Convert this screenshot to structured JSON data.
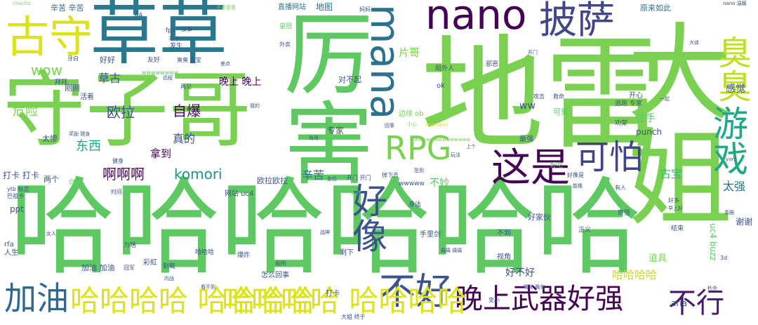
{
  "palette": {
    "dark_purple": "#440154",
    "blue": "#3b528b",
    "teal": "#21918c",
    "green": "#5ec962",
    "light_green": "#7ad151",
    "yellow_green": "#bddf26",
    "yellow": "#dce319"
  },
  "words": [
    {
      "text": "哈哈哈哈哈哈"
    },
    {
      "text": "地雷"
    },
    {
      "text": "大姐"
    },
    {
      "text": "守子哥"
    },
    {
      "text": "草草"
    },
    {
      "text": "厉害"
    },
    {
      "text": "古守"
    },
    {
      "text": "游戏"
    },
    {
      "text": "臭臭"
    },
    {
      "text": "nano"
    },
    {
      "text": "mana"
    },
    {
      "text": "披萨"
    },
    {
      "text": "RPG"
    },
    {
      "text": "好像"
    },
    {
      "text": "这是"
    },
    {
      "text": "可怕"
    },
    {
      "text": "不好"
    },
    {
      "text": "晚上武器好强"
    },
    {
      "text": "不行"
    },
    {
      "text": "加油"
    },
    {
      "text": "哈哈哈哈 哈哈哈哈"
    },
    {
      "text": "哈哈哈哈 哈哈哈哈"
    },
    {
      "text": "片哥"
    },
    {
      "text": "komori"
    },
    {
      "text": "啊啊啊"
    },
    {
      "text": "欧拉"
    },
    {
      "text": "自爆"
    },
    {
      "text": "晚上 晚上"
    },
    {
      "text": "草古"
    },
    {
      "text": "危险"
    },
    {
      "text": "wow"
    },
    {
      "text": "古宝"
    },
    {
      "text": "太强"
    },
    {
      "text": "辛苦"
    },
    {
      "text": "东西"
    },
    {
      "text": "真的"
    },
    {
      "text": "拿到"
    },
    {
      "text": "感觉"
    },
    {
      "text": "住手"
    },
    {
      "text": "打卡 打卡"
    },
    {
      "text": "ww"
    },
    {
      "text": "哈哈哈哈"
    },
    {
      "text": "道具"
    },
    {
      "text": "好不好"
    },
    {
      "text": "uc4 buzz"
    },
    {
      "text": "谢谢"
    },
    {
      "text": "aria"
    },
    {
      "text": "不妙"
    },
    {
      "text": "专家"
    },
    {
      "text": "ppt"
    },
    {
      "text": "地图"
    },
    {
      "text": "辛苦 辛苦"
    },
    {
      "text": "直播网站"
    },
    {
      "text": "原来如此"
    },
    {
      "text": "好好"
    },
    {
      "text": "友好"
    },
    {
      "text": "刚刚"
    },
    {
      "text": "对不起"
    },
    {
      "text": "ok"
    },
    {
      "text": "开心"
    },
    {
      "text": "可爱"
    },
    {
      "text": "欧拉欧拉"
    },
    {
      "text": "网站 uc4"
    },
    {
      "text": "两个"
    },
    {
      "text": "加油 加油"
    },
    {
      "text": "彩虹"
    },
    {
      "text": "怎么回事"
    },
    {
      "text": "剩下"
    },
    {
      "text": "打卡"
    },
    {
      "text": "不到"
    },
    {
      "text": "视角"
    },
    {
      "text": "结束"
    },
    {
      "text": "奇怪"
    },
    {
      "text": "正义"
    },
    {
      "text": "有人"
    },
    {
      "text": "太惨"
    },
    {
      "text": "白给"
    },
    {
      "text": "冠军"
    },
    {
      "text": "爆炸"
    },
    {
      "text": "好家伙"
    },
    {
      "text": "最强"
    },
    {
      "text": "身法"
    },
    {
      "text": "手里剑"
    },
    {
      "text": "哈哈哈"
    },
    {
      "text": "局外人"
    },
    {
      "text": "再见"
    },
    {
      "text": "发生"
    },
    {
      "text": "wwwwwwww"
    },
    {
      "text": "wwwww"
    },
    {
      "text": "活着"
    },
    {
      "text": "拜拜"
    },
    {
      "text": "邪恶"
    },
    {
      "text": "punch"
    },
    {
      "text": "劝架"
    },
    {
      "text": "逃跑 专家"
    },
    {
      "text": "制裁"
    },
    {
      "text": "为啥"
    },
    {
      "text": "时间"
    },
    {
      "text": "人生"
    },
    {
      "text": "rfa"
    },
    {
      "text": "巴祖卡"
    },
    {
      "text": "ytb 标志"
    },
    {
      "text": "大姐 终于"
    },
    {
      "text": "好多"
    },
    {
      "text": "3d"
    },
    {
      "text": "AA"
    },
    {
      "text": "chuchu"
    },
    {
      "text": "nano 温暖"
    },
    {
      "text": "牙白"
    },
    {
      "text": "外卖"
    },
    {
      "text": "差点"
    },
    {
      "text": "没事"
    },
    {
      "text": "皇冠"
    },
    {
      "text": "不好意思"
    },
    {
      "text": "妈妈"
    },
    {
      "text": "边缘 ob"
    },
    {
      "text": "manano"
    },
    {
      "text": "回事"
    },
    {
      "text": "小心"
    },
    {
      "text": "走位"
    },
    {
      "text": "开门 开门"
    },
    {
      "text": "掉下去"
    },
    {
      "text": "同传"
    },
    {
      "text": "战神"
    },
    {
      "text": "痛痛 痛痛"
    },
    {
      "text": "变小"
    },
    {
      "text": "晚安 晚安"
    },
    {
      "text": "能推"
    },
    {
      "text": "早上好"
    },
    {
      "text": "毒圈"
    },
    {
      "text": "秒杀"
    },
    {
      "text": "攻击"
    },
    {
      "text": "救命"
    },
    {
      "text": "健身"
    },
    {
      "text": "奖励 健身"
    },
    {
      "text": "fps"
    },
    {
      "text": "不卡"
    },
    {
      "text": "远程"
    },
    {
      "text": "臭臭 古宝"
    },
    {
      "text": "yuri"
    },
    {
      "text": "签到"
    },
    {
      "text": "开门"
    },
    {
      "text": "大体"
    },
    {
      "text": "玩法"
    },
    {
      "text": "上个"
    },
    {
      "text": "一起"
    },
    {
      "text": "厕所"
    },
    {
      "text": "好吃"
    },
    {
      "text": "内战"
    },
    {
      "text": "看不到"
    },
    {
      "text": "女人"
    },
    {
      "text": "我的"
    },
    {
      "text": "哥哥"
    },
    {
      "text": "好像是"
    },
    {
      "text": "wwwwwwwwwwwwww"
    }
  ]
}
